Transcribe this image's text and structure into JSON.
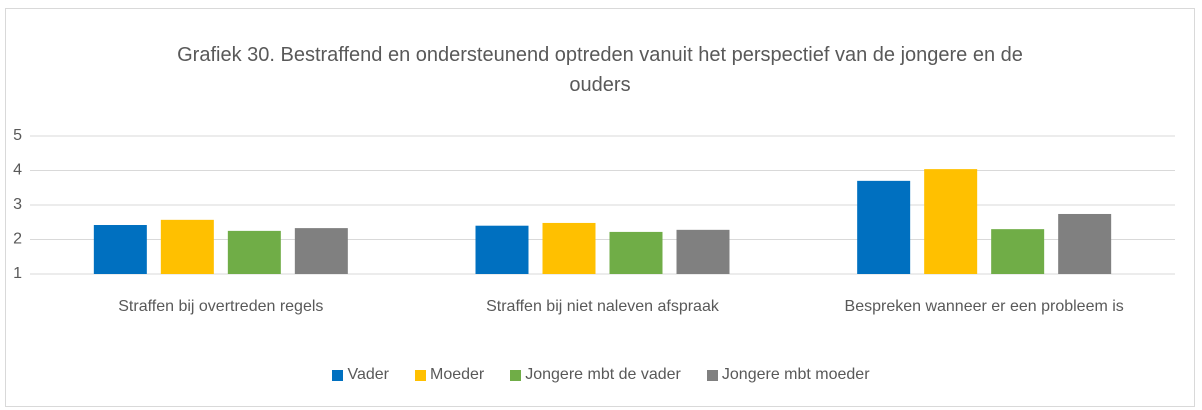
{
  "chart_data": {
    "type": "bar",
    "title": "Grafiek 30. Bestraffend en ondersteunend optreden vanuit het perspectief van de jongere en de ouders",
    "categories": [
      "Straffen bij overtreden regels",
      "Straffen bij niet naleven afspraak",
      "Bespreken wanneer er een probleem is"
    ],
    "series": [
      {
        "name": "Vader",
        "color": "#0070c0",
        "values": [
          2.42,
          2.4,
          3.7
        ]
      },
      {
        "name": "Moeder",
        "color": "#ffc000",
        "values": [
          2.57,
          2.48,
          4.04
        ]
      },
      {
        "name": "Jongere mbt de vader",
        "color": "#70ad47",
        "values": [
          2.25,
          2.22,
          2.3
        ]
      },
      {
        "name": "Jongere mbt moeder",
        "color": "#808080",
        "values": [
          2.33,
          2.28,
          2.74
        ]
      }
    ],
    "ylim": [
      1,
      5
    ],
    "yticks": [
      1,
      2,
      3,
      4,
      5
    ],
    "grid": true,
    "legend": "bottom"
  }
}
